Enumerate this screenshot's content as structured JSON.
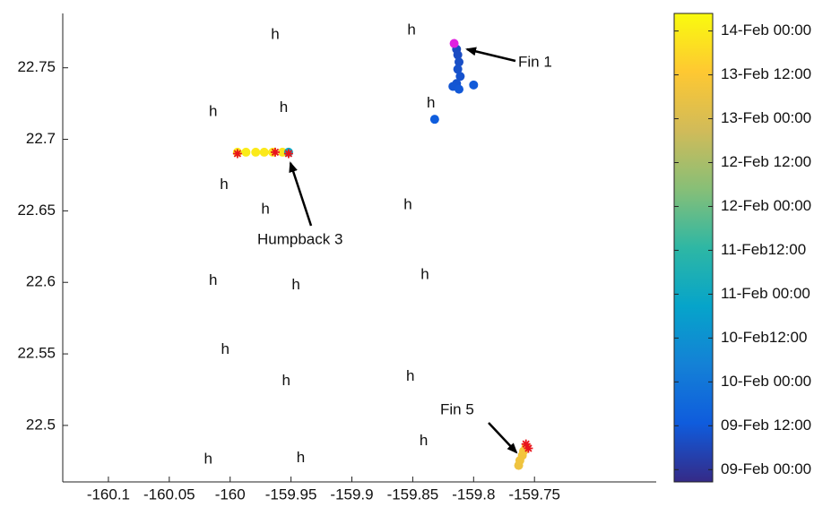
{
  "chart_data": {
    "type": "scatter",
    "xlim": [
      -160.1375,
      -159.65
    ],
    "ylim": [
      22.4605,
      22.788
    ],
    "xticks": [
      -160.1,
      -160.05,
      -160,
      -159.95,
      -159.9,
      -159.85,
      -159.8,
      -159.75
    ],
    "yticks": [
      22.5,
      22.55,
      22.6,
      22.65,
      22.7,
      22.75
    ],
    "series": [
      {
        "name": "Fin 1",
        "x": [
          -159.814,
          -159.813,
          -159.812,
          -159.813,
          -159.811,
          -159.814,
          -159.817,
          -159.812,
          -159.8,
          -159.832
        ],
        "values": [
          22.763,
          22.759,
          22.754,
          22.749,
          22.744,
          22.739,
          22.737,
          22.735,
          22.738,
          22.714
        ],
        "t": [
          0.3,
          0.32,
          0.35,
          0.38,
          0.4,
          0.42,
          0.45,
          0.48,
          0.5,
          0.55
        ]
      },
      {
        "name": "Humpback 3",
        "x": [
          -159.994,
          -159.987,
          -159.979,
          -159.972,
          -159.965,
          -159.957,
          -159.952
        ],
        "values": [
          22.691,
          22.691,
          22.691,
          22.691,
          22.691,
          22.691,
          22.691
        ],
        "t": [
          5.0,
          5.0,
          4.98,
          4.97,
          4.95,
          4.9,
          2.0
        ]
      },
      {
        "name": "Fin 5",
        "x": [
          -159.763,
          -159.762,
          -159.76,
          -159.759,
          -159.757
        ],
        "values": [
          22.472,
          22.4755,
          22.479,
          22.482,
          22.485
        ],
        "t": [
          4.3,
          4.32,
          4.35,
          4.38,
          4.4
        ]
      }
    ],
    "hydrophones": {
      "label": "h",
      "x": [
        -159.963,
        -159.851,
        -160.014,
        -159.956,
        -159.835,
        -160.005,
        -159.971,
        -159.854,
        -160.014,
        -159.946,
        -159.84,
        -160.004,
        -159.954,
        -159.852,
        -159.841,
        -160.018,
        -159.942
      ],
      "y": [
        22.773,
        22.776,
        22.719,
        22.722,
        22.725,
        22.668,
        22.651,
        22.654,
        22.601,
        22.598,
        22.605,
        22.553,
        22.531,
        22.534,
        22.489,
        22.476,
        22.477
      ]
    },
    "detections": {
      "color": "#e8141c",
      "x": [
        -159.994,
        -159.963,
        -159.952,
        -159.757,
        -159.755
      ],
      "y": [
        22.69,
        22.691,
        22.69,
        22.487,
        22.484
      ]
    },
    "start": {
      "color": "#e020e0",
      "x": [
        -159.816
      ],
      "y": [
        22.767
      ]
    },
    "colorbar": {
      "clim": [
        -0.14,
        5.2
      ],
      "colormap": [
        "#352a87",
        "#0f5cdd",
        "#1481d6",
        "#06a4ca",
        "#2eb7a4",
        "#87bf77",
        "#d1bb59",
        "#fec832",
        "#f9fb0e"
      ],
      "ticks": [
        {
          "value": 0,
          "label": "09-Feb 00:00"
        },
        {
          "value": 0.5,
          "label": "09-Feb 12:00"
        },
        {
          "value": 1,
          "label": "10-Feb 00:00"
        },
        {
          "value": 1.5,
          "label": "10-Feb12:00"
        },
        {
          "value": 2,
          "label": "11-Feb 00:00"
        },
        {
          "value": 2.5,
          "label": "11-Feb12:00"
        },
        {
          "value": 3,
          "label": "12-Feb 00:00"
        },
        {
          "value": 3.5,
          "label": "12-Feb 12:00"
        },
        {
          "value": 4,
          "label": "13-Feb 00:00"
        },
        {
          "value": 4.5,
          "label": "13-Feb 12:00"
        },
        {
          "value": 5,
          "label": "14-Feb 00:00"
        }
      ]
    }
  }
}
